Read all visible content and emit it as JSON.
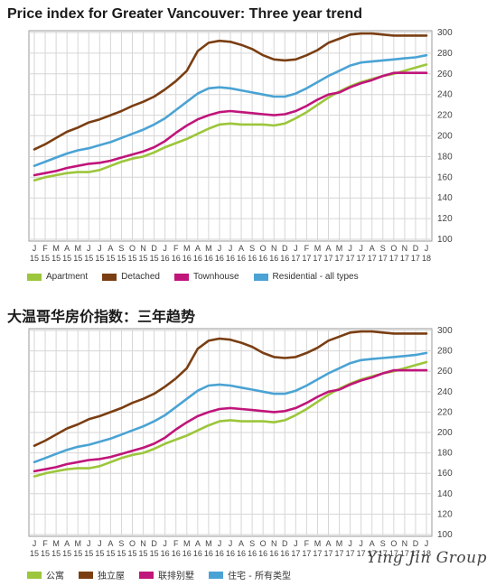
{
  "titles": {
    "top": "Price index for Greater Vancouver: Three year trend",
    "bottom": "大温哥华房价指数：三年趋势"
  },
  "watermark": "Ying Jin Group",
  "colors": {
    "apartment": "#9cc63b",
    "detached": "#7a3e12",
    "townhouse": "#c0157a",
    "residential": "#4aa3d4",
    "grid": "#d6d6d6",
    "frame": "#9a9a9a"
  },
  "legend_top": [
    "Apartment",
    "Detached",
    "Townhouse",
    "Residential - all types"
  ],
  "legend_bottom": [
    "公寓",
    "独立屋",
    "联排别墅",
    "住宅 - 所有类型"
  ],
  "chart_data": {
    "type": "line",
    "title": "Price index for Greater Vancouver: Three year trend",
    "ylim": [
      100,
      300
    ],
    "yticks": [
      100,
      120,
      140,
      160,
      180,
      200,
      220,
      240,
      260,
      280,
      300
    ],
    "grid": true,
    "legend_position": "bottom",
    "x": [
      "Jan 2015",
      "Feb 2015",
      "Mar 2015",
      "Apr 2015",
      "May 2015",
      "Jun 2015",
      "Jul 2015",
      "Aug 2015",
      "Sep 2015",
      "Oct 2015",
      "Nov 2015",
      "Dec 2015",
      "Jan 2016",
      "Feb 2016",
      "Mar 2016",
      "Apr 2016",
      "May 2016",
      "Jun 2016",
      "Jul 2016",
      "Aug 2016",
      "Sep 2016",
      "Oct 2016",
      "Nov 2016",
      "Dec 2016",
      "Jan 2017",
      "Feb 2017",
      "Mar 2017",
      "Apr 2017",
      "May 2017",
      "Jun 2017",
      "Jul 2017",
      "Aug 2017",
      "Sep 2017",
      "Oct 2017",
      "Nov 2017",
      "Dec 2017",
      "Jan 2018"
    ],
    "tick_months": [
      "J",
      "F",
      "M",
      "A",
      "M",
      "J",
      "J",
      "A",
      "S",
      "O",
      "N",
      "D",
      "J",
      "F",
      "M",
      "A",
      "M",
      "J",
      "J",
      "A",
      "S",
      "O",
      "N",
      "D",
      "J",
      "F",
      "M",
      "A",
      "M",
      "J",
      "J",
      "A",
      "S",
      "O",
      "N",
      "D",
      "J"
    ],
    "tick_years": [
      "15",
      "15",
      "15",
      "15",
      "15",
      "15",
      "15",
      "15",
      "15",
      "15",
      "15",
      "15",
      "16",
      "16",
      "16",
      "16",
      "16",
      "16",
      "16",
      "16",
      "16",
      "16",
      "16",
      "16",
      "17",
      "17",
      "17",
      "17",
      "17",
      "17",
      "17",
      "17",
      "17",
      "17",
      "17",
      "17",
      "18"
    ],
    "series": [
      {
        "name": "Apartment",
        "key": "apartment",
        "values": [
          157,
          160,
          162,
          164,
          165,
          165,
          167,
          171,
          175,
          178,
          180,
          184,
          189,
          193,
          197,
          202,
          207,
          211,
          212,
          211,
          211,
          211,
          210,
          212,
          217,
          223,
          230,
          237,
          243,
          248,
          252,
          255,
          258,
          260,
          263,
          266,
          269
        ]
      },
      {
        "name": "Detached",
        "key": "detached",
        "values": [
          187,
          192,
          198,
          204,
          208,
          213,
          216,
          220,
          224,
          229,
          233,
          238,
          245,
          253,
          263,
          282,
          290,
          292,
          291,
          288,
          284,
          278,
          274,
          273,
          274,
          278,
          283,
          290,
          294,
          298,
          299,
          299,
          298,
          297,
          297,
          297,
          297
        ]
      },
      {
        "name": "Townhouse",
        "key": "townhouse",
        "values": [
          162,
          164,
          166,
          169,
          171,
          173,
          174,
          176,
          179,
          182,
          185,
          189,
          195,
          203,
          210,
          216,
          220,
          223,
          224,
          223,
          222,
          221,
          220,
          221,
          224,
          229,
          235,
          240,
          242,
          247,
          251,
          254,
          258,
          261,
          261,
          261,
          261
        ]
      },
      {
        "name": "Residential - all types",
        "key": "residential",
        "values": [
          171,
          175,
          179,
          183,
          186,
          188,
          191,
          194,
          198,
          202,
          206,
          211,
          217,
          225,
          233,
          241,
          246,
          247,
          246,
          244,
          242,
          240,
          238,
          238,
          241,
          246,
          252,
          258,
          263,
          268,
          271,
          272,
          273,
          274,
          275,
          276,
          278
        ]
      }
    ]
  }
}
